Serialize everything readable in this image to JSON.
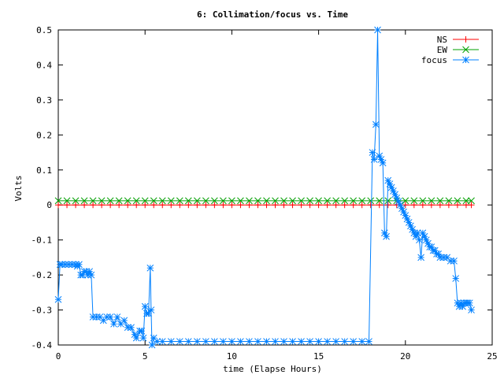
{
  "chart_data": {
    "type": "line",
    "title": "6: Collimation/focus vs. Time",
    "xlabel": "time (Elapse Hours)",
    "ylabel": "Volts",
    "xlim": [
      0,
      25
    ],
    "ylim": [
      -0.4,
      0.5
    ],
    "x_ticks": [
      0,
      5,
      10,
      15,
      20,
      25
    ],
    "x_tick_labels": [
      "0",
      "5",
      "10",
      "15",
      "20",
      "25"
    ],
    "y_ticks": [
      -0.4,
      -0.3,
      -0.2,
      -0.1,
      0,
      0.1,
      0.2,
      0.3,
      0.4,
      0.5
    ],
    "y_tick_labels": [
      "-0.4",
      "-0.3",
      "-0.2",
      "-0.1",
      "0",
      "0.1",
      "0.2",
      "0.3",
      "0.4",
      "0.5"
    ],
    "grid": false,
    "legend_position": "top-right",
    "series": [
      {
        "name": "NS",
        "color": "#ff0000",
        "marker": "plus",
        "x": [
          0.0,
          0.5,
          1.0,
          1.5,
          2.0,
          2.5,
          3.0,
          3.5,
          4.0,
          4.5,
          5.0,
          5.5,
          6.0,
          6.5,
          7.0,
          7.5,
          8.0,
          8.5,
          9.0,
          9.5,
          10.0,
          10.5,
          11.0,
          11.5,
          12.0,
          12.5,
          13.0,
          13.5,
          14.0,
          14.5,
          15.0,
          15.5,
          16.0,
          16.5,
          17.0,
          17.5,
          18.0,
          18.5,
          19.0,
          19.5,
          20.0,
          20.5,
          21.0,
          21.5,
          22.0,
          22.5,
          23.0,
          23.5,
          23.8
        ],
        "y": [
          0.0,
          0.0,
          0.0,
          0.0,
          0.0,
          0.0,
          0.0,
          0.0,
          0.0,
          0.0,
          0.0,
          0.0,
          0.0,
          0.0,
          0.0,
          0.0,
          0.0,
          0.0,
          0.0,
          0.0,
          0.0,
          0.0,
          0.0,
          0.0,
          0.0,
          0.0,
          0.0,
          0.0,
          0.0,
          0.0,
          0.0,
          0.0,
          0.0,
          0.0,
          0.0,
          0.0,
          0.0,
          0.0,
          0.0,
          0.0,
          0.0,
          0.0,
          0.0,
          0.0,
          0.0,
          0.0,
          0.0,
          0.0,
          0.0
        ]
      },
      {
        "name": "EW",
        "color": "#00a000",
        "marker": "cross",
        "x": [
          0.0,
          0.5,
          1.0,
          1.5,
          2.0,
          2.5,
          3.0,
          3.5,
          4.0,
          4.5,
          5.0,
          5.5,
          6.0,
          6.5,
          7.0,
          7.5,
          8.0,
          8.5,
          9.0,
          9.5,
          10.0,
          10.5,
          11.0,
          11.5,
          12.0,
          12.5,
          13.0,
          13.5,
          14.0,
          14.5,
          15.0,
          15.5,
          16.0,
          16.5,
          17.0,
          17.5,
          18.0,
          18.5,
          19.0,
          19.5,
          20.0,
          20.5,
          21.0,
          21.5,
          22.0,
          22.5,
          23.0,
          23.5,
          23.8
        ],
        "y": [
          0.012,
          0.012,
          0.012,
          0.012,
          0.012,
          0.012,
          0.012,
          0.012,
          0.012,
          0.012,
          0.012,
          0.012,
          0.012,
          0.012,
          0.012,
          0.012,
          0.012,
          0.012,
          0.012,
          0.012,
          0.012,
          0.012,
          0.012,
          0.012,
          0.012,
          0.012,
          0.012,
          0.012,
          0.012,
          0.012,
          0.012,
          0.012,
          0.012,
          0.012,
          0.012,
          0.012,
          0.012,
          0.012,
          0.012,
          0.012,
          0.012,
          0.012,
          0.012,
          0.012,
          0.012,
          0.012,
          0.012,
          0.012,
          0.012
        ]
      },
      {
        "name": "focus",
        "color": "#0080ff",
        "marker": "star",
        "x": [
          0.0,
          0.1,
          0.2,
          0.4,
          0.6,
          0.8,
          1.0,
          1.1,
          1.2,
          1.3,
          1.4,
          1.5,
          1.6,
          1.7,
          1.8,
          1.9,
          2.0,
          2.2,
          2.4,
          2.6,
          2.8,
          3.0,
          3.2,
          3.4,
          3.6,
          3.8,
          4.0,
          4.2,
          4.4,
          4.5,
          4.7,
          4.8,
          4.9,
          5.0,
          5.1,
          5.2,
          5.3,
          5.35,
          5.4,
          5.5,
          5.7,
          6.0,
          6.5,
          7.0,
          7.5,
          8.0,
          8.5,
          9.0,
          9.5,
          10.0,
          10.5,
          11.0,
          11.5,
          12.0,
          12.5,
          13.0,
          13.5,
          14.0,
          14.5,
          15.0,
          15.5,
          16.0,
          16.5,
          17.0,
          17.5,
          17.9,
          18.1,
          18.2,
          18.3,
          18.4,
          18.5,
          18.6,
          18.7,
          18.8,
          18.9,
          19.0,
          19.1,
          19.2,
          19.3,
          19.4,
          19.5,
          19.6,
          19.7,
          19.8,
          19.9,
          20.0,
          20.1,
          20.2,
          20.3,
          20.4,
          20.5,
          20.6,
          20.7,
          20.8,
          20.9,
          21.0,
          21.1,
          21.2,
          21.3,
          21.4,
          21.5,
          21.6,
          21.7,
          21.8,
          21.9,
          22.0,
          22.2,
          22.4,
          22.6,
          22.8,
          22.9,
          23.0,
          23.1,
          23.2,
          23.3,
          23.4,
          23.5,
          23.6,
          23.7,
          23.8
        ],
        "y": [
          -0.27,
          -0.17,
          -0.17,
          -0.17,
          -0.17,
          -0.17,
          -0.17,
          -0.175,
          -0.17,
          -0.2,
          -0.2,
          -0.19,
          -0.19,
          -0.2,
          -0.19,
          -0.2,
          -0.32,
          -0.32,
          -0.32,
          -0.33,
          -0.32,
          -0.32,
          -0.34,
          -0.32,
          -0.34,
          -0.33,
          -0.35,
          -0.35,
          -0.37,
          -0.38,
          -0.36,
          -0.36,
          -0.38,
          -0.29,
          -0.31,
          -0.31,
          -0.18,
          -0.3,
          -0.4,
          -0.38,
          -0.39,
          -0.39,
          -0.39,
          -0.39,
          -0.39,
          -0.39,
          -0.39,
          -0.39,
          -0.39,
          -0.39,
          -0.39,
          -0.39,
          -0.39,
          -0.39,
          -0.39,
          -0.39,
          -0.39,
          -0.39,
          -0.39,
          -0.39,
          -0.39,
          -0.39,
          -0.39,
          -0.39,
          -0.39,
          -0.39,
          0.15,
          0.13,
          0.23,
          0.5,
          0.14,
          0.13,
          0.12,
          -0.08,
          -0.09,
          0.07,
          0.06,
          0.05,
          0.04,
          0.03,
          0.02,
          0.01,
          0.0,
          -0.01,
          -0.02,
          -0.03,
          -0.04,
          -0.05,
          -0.06,
          -0.07,
          -0.08,
          -0.09,
          -0.08,
          -0.1,
          -0.15,
          -0.08,
          -0.09,
          -0.1,
          -0.11,
          -0.12,
          -0.12,
          -0.13,
          -0.13,
          -0.14,
          -0.14,
          -0.15,
          -0.15,
          -0.15,
          -0.16,
          -0.16,
          -0.21,
          -0.28,
          -0.29,
          -0.28,
          -0.29,
          -0.28,
          -0.28,
          -0.28,
          -0.28,
          -0.3
        ]
      }
    ]
  }
}
